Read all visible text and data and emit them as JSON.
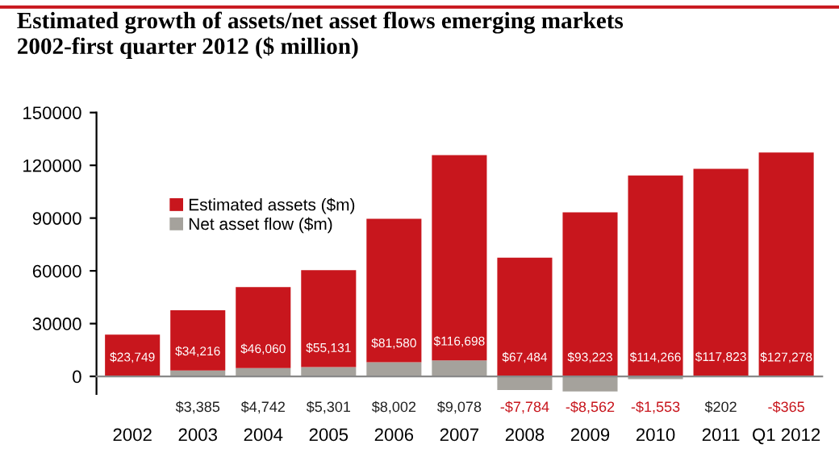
{
  "chart_data": {
    "type": "bar",
    "stacked": true,
    "title": "Estimated growth of assets/net asset flows emerging markets\n2002-first quarter 2012 ($ million)",
    "categories": [
      "2002",
      "2003",
      "2004",
      "2005",
      "2006",
      "2007",
      "2008",
      "2009",
      "2010",
      "2011",
      "Q1 2012"
    ],
    "series": [
      {
        "name": "Net asset flow ($m)",
        "color": "#a5a29c",
        "values": [
          null,
          3385,
          4742,
          5301,
          8002,
          9078,
          -7784,
          -8562,
          -1553,
          202,
          -365
        ],
        "value_labels": [
          null,
          "$3,385",
          "$4,742",
          "$5,301",
          "$8,002",
          "$9,078",
          "-$7,784",
          "-$8,562",
          "-$1,553",
          "$202",
          "-$365"
        ]
      },
      {
        "name": "Estimated assets ($m)",
        "color": "#c8161d",
        "values": [
          23749,
          34216,
          46060,
          55131,
          81580,
          116698,
          67484,
          93223,
          114266,
          117823,
          127278
        ],
        "value_labels": [
          "$23,749",
          "$34,216",
          "$46,060",
          "$55,131",
          "$81,580",
          "$116,698",
          "$67,484",
          "$93,223",
          "$114,266",
          "$117,823",
          "$127,278"
        ]
      }
    ],
    "ylim": [
      -10000,
      150000
    ],
    "yticks": [
      0,
      30000,
      60000,
      90000,
      120000,
      150000
    ],
    "legend": "top left"
  }
}
